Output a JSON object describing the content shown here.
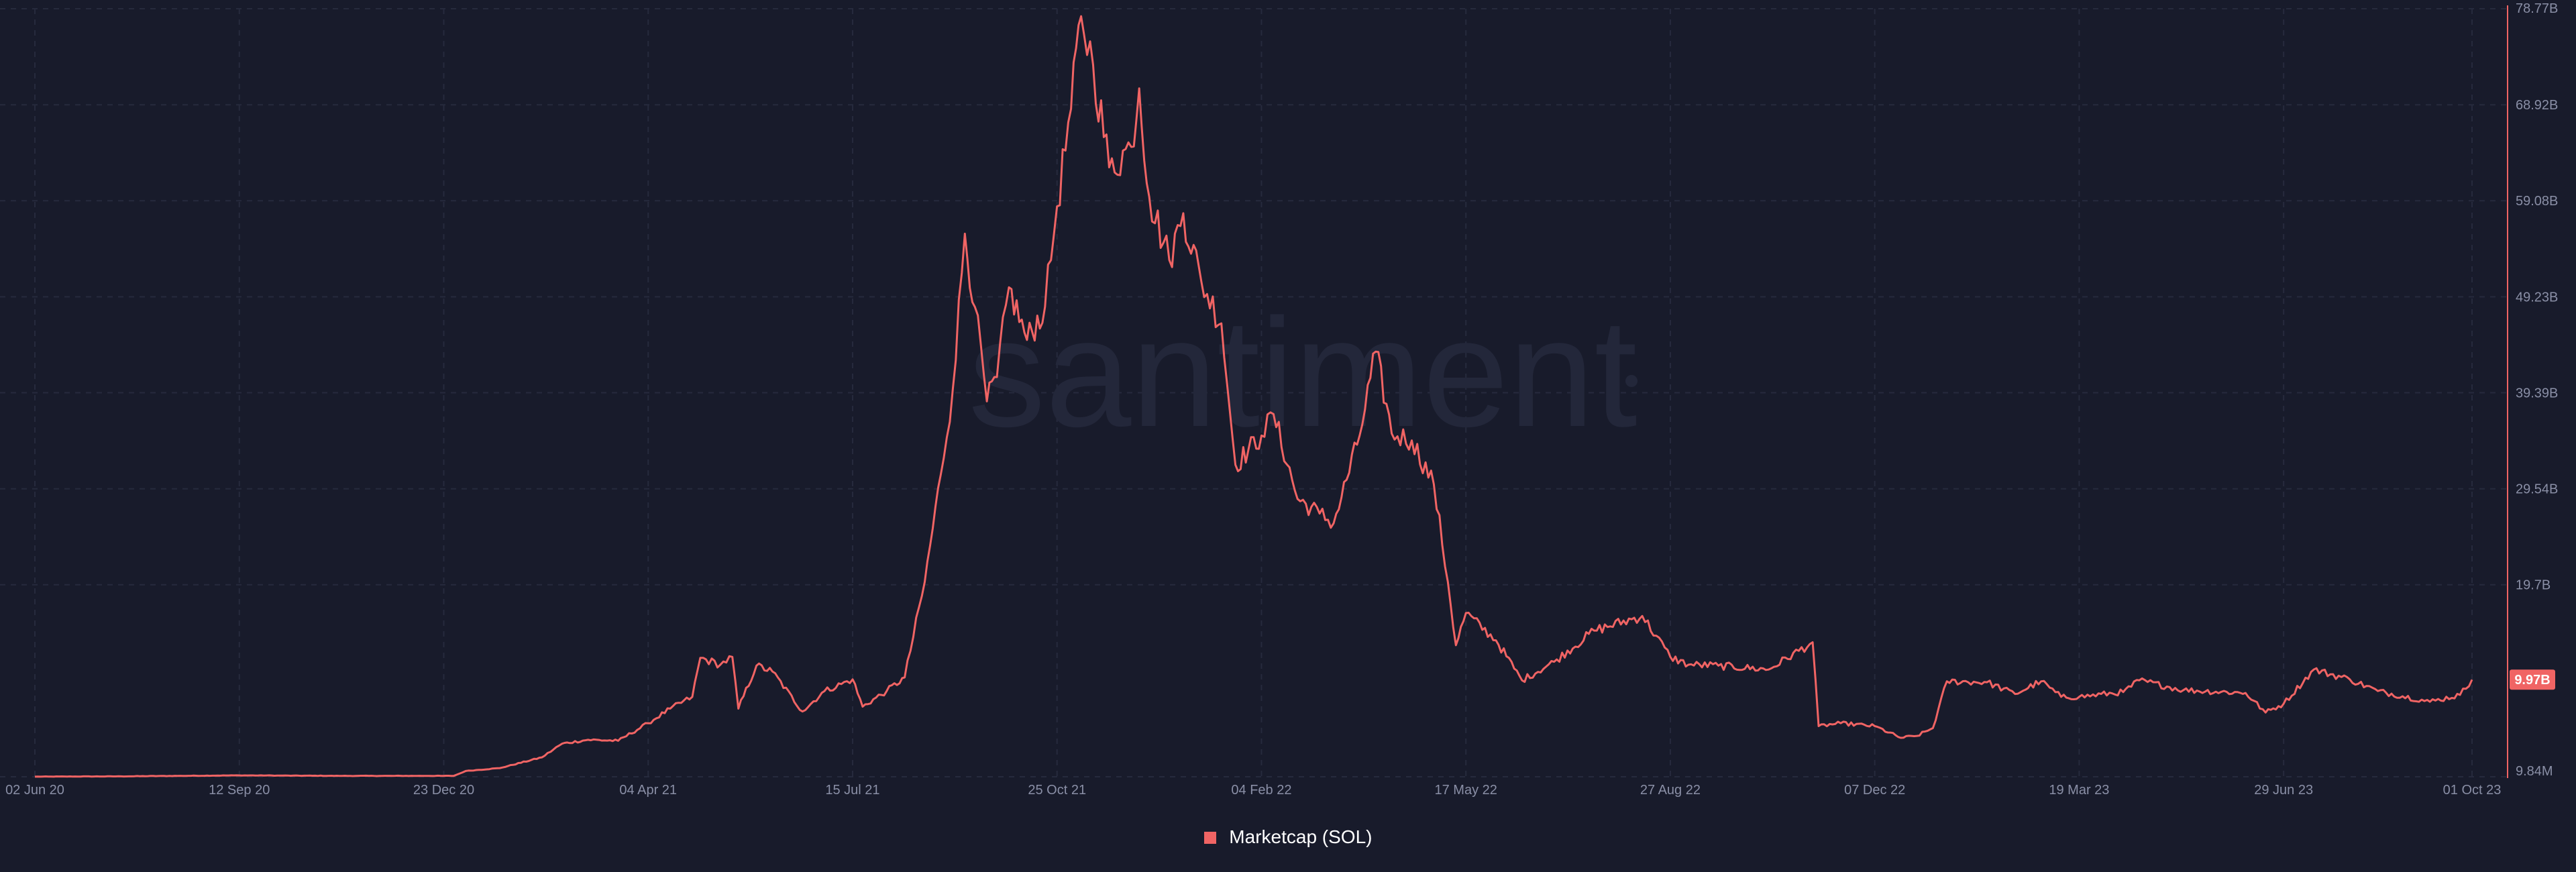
{
  "chart_data": {
    "type": "line",
    "title": "",
    "xlabel": "",
    "ylabel": "",
    "grid": true,
    "legend": "bottom-center",
    "watermark": "santiment",
    "x_range": [
      "2020-06-02",
      "2023-10-01"
    ],
    "y_range_billions": [
      0.00984,
      78.77
    ],
    "y_ticks": [
      {
        "label": "78.77B",
        "value": 78.77
      },
      {
        "label": "68.92B",
        "value": 68.92
      },
      {
        "label": "59.08B",
        "value": 59.08
      },
      {
        "label": "49.23B",
        "value": 49.23
      },
      {
        "label": "39.39B",
        "value": 39.39
      },
      {
        "label": "29.54B",
        "value": 29.54
      },
      {
        "label": "19.7B",
        "value": 19.7
      },
      {
        "label": "9.84M",
        "value": 0.00984
      }
    ],
    "x_ticks": [
      {
        "label": "02 Jun 20",
        "date": "2020-06-02"
      },
      {
        "label": "12 Sep 20",
        "date": "2020-09-12"
      },
      {
        "label": "23 Dec 20",
        "date": "2020-12-23"
      },
      {
        "label": "04 Apr 21",
        "date": "2021-04-04"
      },
      {
        "label": "15 Jul 21",
        "date": "2021-07-15"
      },
      {
        "label": "25 Oct 21",
        "date": "2021-10-25"
      },
      {
        "label": "04 Feb 22",
        "date": "2022-02-04"
      },
      {
        "label": "17 May 22",
        "date": "2022-05-17"
      },
      {
        "label": "27 Aug 22",
        "date": "2022-08-27"
      },
      {
        "label": "07 Dec 22",
        "date": "2022-12-07"
      },
      {
        "label": "19 Mar 23",
        "date": "2023-03-19"
      },
      {
        "label": "29 Jun 23",
        "date": "2023-06-29"
      },
      {
        "label": "01 Oct 23",
        "date": "2023-10-01"
      }
    ],
    "last_value_label": "9.97B",
    "series": [
      {
        "name": "Marketcap (SOL)",
        "color": "#f06464",
        "points": [
          [
            "2020-06-02",
            0.02
          ],
          [
            "2020-07-15",
            0.05
          ],
          [
            "2020-09-12",
            0.15
          ],
          [
            "2020-11-01",
            0.1
          ],
          [
            "2020-12-28",
            0.1
          ],
          [
            "2021-01-03",
            0.6
          ],
          [
            "2021-01-20",
            0.9
          ],
          [
            "2021-02-10",
            2.0
          ],
          [
            "2021-02-20",
            3.4
          ],
          [
            "2021-03-05",
            3.8
          ],
          [
            "2021-03-20",
            3.7
          ],
          [
            "2021-04-04",
            5.5
          ],
          [
            "2021-04-15",
            7.0
          ],
          [
            "2021-04-26",
            8.2
          ],
          [
            "2021-04-30",
            12.2
          ],
          [
            "2021-05-10",
            11.5
          ],
          [
            "2021-05-16",
            12.3
          ],
          [
            "2021-05-19",
            7.0
          ],
          [
            "2021-05-28",
            11.4
          ],
          [
            "2021-06-05",
            10.8
          ],
          [
            "2021-06-20",
            6.7
          ],
          [
            "2021-07-01",
            8.8
          ],
          [
            "2021-07-15",
            10.0
          ],
          [
            "2021-07-20",
            7.2
          ],
          [
            "2021-08-01",
            8.8
          ],
          [
            "2021-08-10",
            10.2
          ],
          [
            "2021-08-20",
            20.0
          ],
          [
            "2021-08-28",
            31.0
          ],
          [
            "2021-09-03",
            39.8
          ],
          [
            "2021-09-09",
            55.7
          ],
          [
            "2021-09-14",
            48.2
          ],
          [
            "2021-09-20",
            38.5
          ],
          [
            "2021-09-25",
            41.0
          ],
          [
            "2021-10-01",
            50.2
          ],
          [
            "2021-10-10",
            44.8
          ],
          [
            "2021-10-19",
            48.2
          ],
          [
            "2021-10-25",
            58.5
          ],
          [
            "2021-11-01",
            68.5
          ],
          [
            "2021-11-06",
            78.0
          ],
          [
            "2021-11-12",
            73.0
          ],
          [
            "2021-11-20",
            62.5
          ],
          [
            "2021-12-01",
            64.6
          ],
          [
            "2021-12-05",
            70.6
          ],
          [
            "2021-12-10",
            59.5
          ],
          [
            "2021-12-20",
            53.0
          ],
          [
            "2021-12-27",
            57.8
          ],
          [
            "2022-01-05",
            50.8
          ],
          [
            "2022-01-15",
            46.5
          ],
          [
            "2022-01-22",
            32.0
          ],
          [
            "2022-02-04",
            35.0
          ],
          [
            "2022-02-10",
            37.2
          ],
          [
            "2022-02-22",
            28.5
          ],
          [
            "2022-03-05",
            27.0
          ],
          [
            "2022-03-12",
            26.0
          ],
          [
            "2022-03-25",
            35.0
          ],
          [
            "2022-04-02",
            43.6
          ],
          [
            "2022-04-10",
            35.2
          ],
          [
            "2022-04-20",
            34.5
          ],
          [
            "2022-05-01",
            30.0
          ],
          [
            "2022-05-08",
            20.0
          ],
          [
            "2022-05-12",
            13.5
          ],
          [
            "2022-05-17",
            16.8
          ],
          [
            "2022-06-01",
            14.0
          ],
          [
            "2022-06-14",
            9.9
          ],
          [
            "2022-06-30",
            11.8
          ],
          [
            "2022-07-20",
            15.0
          ],
          [
            "2022-08-13",
            16.5
          ],
          [
            "2022-08-27",
            12.3
          ],
          [
            "2022-09-05",
            11.5
          ],
          [
            "2022-09-20",
            11.4
          ],
          [
            "2022-10-15",
            11.0
          ],
          [
            "2022-11-06",
            13.8
          ],
          [
            "2022-11-09",
            5.2
          ],
          [
            "2022-11-20",
            5.5
          ],
          [
            "2022-12-07",
            5.2
          ],
          [
            "2022-12-20",
            4.0
          ],
          [
            "2022-12-28",
            4.2
          ],
          [
            "2023-01-05",
            5.0
          ],
          [
            "2023-01-12",
            9.8
          ],
          [
            "2023-02-01",
            9.7
          ],
          [
            "2023-02-15",
            8.5
          ],
          [
            "2023-02-28",
            9.8
          ],
          [
            "2023-03-10",
            8.2
          ],
          [
            "2023-03-19",
            8.2
          ],
          [
            "2023-04-10",
            8.7
          ],
          [
            "2023-04-18",
            9.9
          ],
          [
            "2023-05-10",
            8.9
          ],
          [
            "2023-06-10",
            8.6
          ],
          [
            "2023-06-20",
            6.6
          ],
          [
            "2023-06-29",
            7.5
          ],
          [
            "2023-07-14",
            11.0
          ],
          [
            "2023-08-01",
            10.0
          ],
          [
            "2023-08-15",
            8.8
          ],
          [
            "2023-09-10",
            7.7
          ],
          [
            "2023-09-25",
            8.4
          ],
          [
            "2023-10-01",
            9.97
          ]
        ]
      }
    ]
  }
}
